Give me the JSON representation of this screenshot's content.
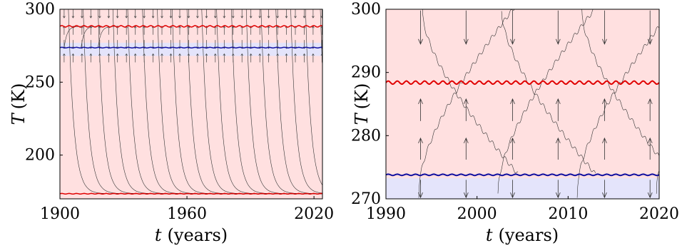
{
  "chart_data": [
    {
      "type": "line",
      "title": "",
      "xlabel": {
        "var": "t",
        "unit": "(years)"
      },
      "ylabel": {
        "var": "T",
        "unit": "(K)"
      },
      "xlim": [
        1900,
        2024
      ],
      "ylim": [
        170,
        300
      ],
      "xticks": [
        1900,
        1960,
        2020
      ],
      "xtick_labels": [
        "1900",
        "1960",
        "2020"
      ],
      "yticks": [
        200,
        250,
        300
      ],
      "ytick_labels": [
        "200",
        "250",
        "300"
      ],
      "grid": false,
      "legend": "none",
      "regions": [
        {
          "y_from": 170,
          "y_to": 300,
          "color": "#ffe0e0"
        },
        {
          "y_from": 268,
          "y_to": 277,
          "color": "#e4e4fb"
        }
      ],
      "series": [
        {
          "role": "warm-equilibrium",
          "color": "#e00000",
          "y_mean": 288.3,
          "y_amp": 0.5
        },
        {
          "role": "threshold",
          "color": "#1010a0",
          "y_mean": 273.7,
          "y_amp": 0.2
        },
        {
          "role": "cold-equilibrium",
          "color": "#e00000",
          "y_mean": 173.5,
          "y_amp": 0.2
        }
      ],
      "trajectories": {
        "color": "#333333",
        "falling_start_years": [
          1904,
          1911,
          1918,
          1925,
          1932,
          1939,
          1946,
          1953,
          1960,
          1967,
          1974,
          1981,
          1988,
          1995,
          2002,
          2009,
          2016,
          2023
        ],
        "falling_from": 300,
        "falling_to": 173.5,
        "rising_start_years": [
          1902,
          1910,
          1918
        ],
        "rising_from": 273.7,
        "rising_to": 288.3
      }
    },
    {
      "type": "line",
      "title": "",
      "xlabel": {
        "var": "t",
        "unit": "(years)"
      },
      "ylabel": {
        "var": "T",
        "unit": "(K)"
      },
      "xlim": [
        1990,
        2020
      ],
      "ylim": [
        270,
        300
      ],
      "xticks": [
        1990,
        2000,
        2010,
        2020
      ],
      "xtick_labels": [
        "1990",
        "2000",
        "2010",
        "2020"
      ],
      "yticks": [
        270,
        280,
        290,
        300
      ],
      "ytick_labels": [
        "270",
        "280",
        "290",
        "300"
      ],
      "grid": false,
      "legend": "none",
      "regions": [
        {
          "y_from": 270,
          "y_to": 300,
          "color": "#ffe0e0"
        },
        {
          "y_from": 270,
          "y_to": 273.3,
          "color": "#e4e4fb"
        }
      ],
      "series": [
        {
          "role": "warm-equilibrium",
          "color": "#e00000",
          "y_mean": 288.4,
          "y_amp": 0.25
        },
        {
          "role": "threshold",
          "color": "#1010a0",
          "y_mean": 273.8,
          "y_amp": 0.1
        }
      ],
      "trajectories": {
        "color": "#333333",
        "falling": [
          [
            1994.0,
            300,
            2004.5
          ],
          [
            2002.7,
            300,
            2013.0
          ],
          [
            2011.5,
            300,
            2021.5
          ]
        ],
        "rising": [
          [
            1993.6,
            270.5,
            2005.0
          ],
          [
            2002.3,
            270.5,
            2014.0
          ],
          [
            2011.0,
            270.5,
            2022.5
          ],
          [
            2019.7,
            270.5,
            2030.0
          ]
        ]
      },
      "arrows_down_x": [
        1993.8,
        1998.8,
        2003.9,
        2008.9,
        2014.0,
        2019.0
      ],
      "arrows_up_x": [
        1993.8,
        1998.8,
        2003.9,
        2008.9,
        2014.0,
        2019.0
      ]
    }
  ]
}
